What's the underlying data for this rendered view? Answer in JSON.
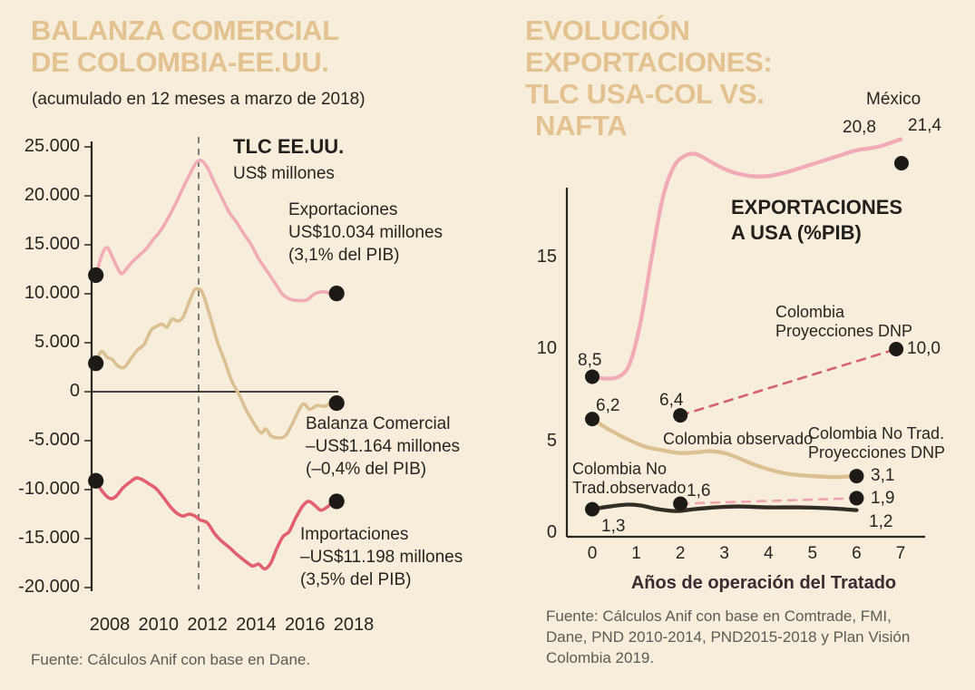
{
  "left_panel": {
    "title_lines": [
      "BALANZA COMERCIAL",
      "DE COLOMBIA-EE.UU."
    ],
    "subtitle": "(acumulado en 12 meses a marzo de 2018)",
    "tlc_label": "TLC EE.UU.",
    "units_label": "US$ millones",
    "annotations": {
      "exportaciones": [
        "Exportaciones",
        "US$10.034 millones",
        "(3,1% del PIB)"
      ],
      "balanza": [
        "Balanza Comercial",
        "–US$1.164 millones",
        "(–0,4% del PIB)"
      ],
      "importaciones": [
        "Importaciones",
        "–US$11.198 millones",
        "(3,5% del PIB)"
      ]
    },
    "source": "Fuente: Cálculos Anif con base en Dane."
  },
  "right_panel": {
    "title_lines": [
      "EVOLUCIÓN",
      "EXPORTACIONES:",
      "TLC USA-COL VS.",
      "NAFTA"
    ],
    "heading_lines": [
      "EXPORTACIONES",
      "A USA (%PIB)"
    ],
    "xaxis_title": "Años de operación del Tratado",
    "labels": {
      "mexico": "México",
      "mexico_v1": "20,8",
      "mexico_v2": "21,4",
      "mexico_start": "8,5",
      "col_proj": [
        "Colombia",
        "Proyecciones DNP"
      ],
      "col_proj_value": "10,0",
      "col_obs_start": "6,2",
      "col_proj_start": "6,4",
      "col_obs_label": "Colombia observado",
      "col_obs_end": "3,1",
      "notrad_proj": [
        "Colombia No Trad.",
        "Proyecciones DNP"
      ],
      "notrad_proj_start": "1,6",
      "notrad_proj_end": "1,9",
      "notrad_obs": [
        "Colombia No",
        "Trad.observado"
      ],
      "notrad_start": "1,3",
      "notrad_end": "1,2"
    },
    "source_lines": [
      "Fuente: Cálculos Anif con base en Comtrade, FMI,",
      "Dane, PND 2010-2014, PND2015-2018 y Plan Visión",
      "Colombia 2019."
    ]
  },
  "colors": {
    "background": "#f6eddb",
    "title_tan": "#e4c28f",
    "pink": "#f2aab6",
    "tan": "#dcc091",
    "red": "#e25f70",
    "dark_line": "#332d26",
    "projection_rose": "#d56070",
    "projection_light": "#efa3ad",
    "axis": "#2b2522",
    "text": "#2a2421",
    "muted": "#5d5b54",
    "marker": "#1e1a17"
  },
  "chart_data": [
    {
      "type": "line",
      "title": "Balanza comercial de Colombia-EE.UU. (acumulado en 12 meses a marzo de 2018)",
      "ylabel": "US$ millones",
      "ylim": [
        -20000,
        25000
      ],
      "tlc_event_label": "TLC EE.UU.",
      "x_axis": {
        "labels": [
          "2008",
          "2010",
          "2012",
          "2014",
          "2016",
          "2018"
        ],
        "values": [
          2008,
          2010,
          2012,
          2014,
          2016,
          2018
        ]
      },
      "y_axis": {
        "labels": [
          "25.000",
          "20.000",
          "15.000",
          "10.000",
          "5.000",
          "0",
          "-5.000",
          "-10.000",
          "-15.000",
          "-20.000"
        ],
        "values": [
          25000,
          20000,
          15000,
          10000,
          5000,
          0,
          -5000,
          -10000,
          -15000,
          -20000
        ]
      },
      "key_values": {
        "exportaciones": 10034,
        "balanza_comercial": -1164,
        "importaciones": -11198
      },
      "series": [
        {
          "name": "Exportaciones",
          "color": "#f2aab6",
          "style": "solid",
          "points": [
            [
              2007.43,
              11900
            ],
            [
              2007.7,
              14100
            ],
            [
              2007.9,
              14700
            ],
            [
              2008.1,
              13800
            ],
            [
              2008.45,
              12100
            ],
            [
              2008.7,
              12600
            ],
            [
              2008.9,
              13200
            ],
            [
              2009.2,
              13900
            ],
            [
              2009.5,
              14600
            ],
            [
              2009.8,
              15600
            ],
            [
              2010.1,
              16500
            ],
            [
              2010.45,
              18000
            ],
            [
              2010.7,
              19200
            ],
            [
              2011.0,
              20800
            ],
            [
              2011.3,
              22300
            ],
            [
              2011.55,
              23400
            ],
            [
              2011.75,
              23600
            ],
            [
              2012.0,
              22900
            ],
            [
              2012.3,
              21300
            ],
            [
              2012.6,
              19800
            ],
            [
              2012.9,
              18300
            ],
            [
              2013.2,
              17300
            ],
            [
              2013.5,
              16100
            ],
            [
              2013.8,
              15000
            ],
            [
              2014.1,
              13600
            ],
            [
              2014.45,
              12300
            ],
            [
              2014.8,
              11000
            ],
            [
              2015.1,
              9900
            ],
            [
              2015.45,
              9400
            ],
            [
              2015.8,
              9300
            ],
            [
              2016.1,
              9400
            ],
            [
              2016.4,
              10000
            ],
            [
              2016.7,
              10200
            ],
            [
              2017.0,
              10100
            ],
            [
              2017.3,
              10034
            ]
          ]
        },
        {
          "name": "Balanza Comercial",
          "color": "#dcc091",
          "style": "solid",
          "points": [
            [
              2007.43,
              2900
            ],
            [
              2007.65,
              4100
            ],
            [
              2007.9,
              3500
            ],
            [
              2008.1,
              3300
            ],
            [
              2008.35,
              2600
            ],
            [
              2008.6,
              2500
            ],
            [
              2008.9,
              3500
            ],
            [
              2009.15,
              4300
            ],
            [
              2009.4,
              4800
            ],
            [
              2009.7,
              6300
            ],
            [
              2009.95,
              6700
            ],
            [
              2010.15,
              6900
            ],
            [
              2010.35,
              6600
            ],
            [
              2010.55,
              7400
            ],
            [
              2010.8,
              7200
            ],
            [
              2011.0,
              7600
            ],
            [
              2011.2,
              8800
            ],
            [
              2011.45,
              10300
            ],
            [
              2011.6,
              10500
            ],
            [
              2011.8,
              10100
            ],
            [
              2012.1,
              7800
            ],
            [
              2012.4,
              5200
            ],
            [
              2012.7,
              3200
            ],
            [
              2013.0,
              1100
            ],
            [
              2013.3,
              -300
            ],
            [
              2013.6,
              -1900
            ],
            [
              2013.9,
              -3200
            ],
            [
              2014.2,
              -4200
            ],
            [
              2014.4,
              -3800
            ],
            [
              2014.6,
              -4500
            ],
            [
              2014.9,
              -4700
            ],
            [
              2015.2,
              -4500
            ],
            [
              2015.5,
              -3200
            ],
            [
              2015.9,
              -1300
            ],
            [
              2016.2,
              -1800
            ],
            [
              2016.5,
              -1400
            ],
            [
              2016.8,
              -1500
            ],
            [
              2017.05,
              -1200
            ],
            [
              2017.3,
              -1164
            ]
          ]
        },
        {
          "name": "Importaciones",
          "color": "#e25f70",
          "style": "solid",
          "points": [
            [
              2007.43,
              -9100
            ],
            [
              2007.7,
              -10200
            ],
            [
              2008.0,
              -10900
            ],
            [
              2008.25,
              -10700
            ],
            [
              2008.55,
              -9800
            ],
            [
              2008.9,
              -9100
            ],
            [
              2009.1,
              -8800
            ],
            [
              2009.35,
              -9000
            ],
            [
              2009.6,
              -9400
            ],
            [
              2009.9,
              -9900
            ],
            [
              2010.2,
              -10800
            ],
            [
              2010.5,
              -11800
            ],
            [
              2010.75,
              -12400
            ],
            [
              2011.0,
              -12700
            ],
            [
              2011.25,
              -12500
            ],
            [
              2011.5,
              -12700
            ],
            [
              2011.7,
              -13100
            ],
            [
              2012.0,
              -13400
            ],
            [
              2012.3,
              -14500
            ],
            [
              2012.6,
              -15300
            ],
            [
              2012.9,
              -15900
            ],
            [
              2013.2,
              -16600
            ],
            [
              2013.5,
              -17200
            ],
            [
              2013.85,
              -17800
            ],
            [
              2014.1,
              -17600
            ],
            [
              2014.35,
              -18100
            ],
            [
              2014.6,
              -17500
            ],
            [
              2014.85,
              -16000
            ],
            [
              2015.1,
              -14800
            ],
            [
              2015.35,
              -14300
            ],
            [
              2015.6,
              -13000
            ],
            [
              2015.9,
              -11700
            ],
            [
              2016.15,
              -11200
            ],
            [
              2016.4,
              -11600
            ],
            [
              2016.65,
              -12100
            ],
            [
              2016.9,
              -11800
            ],
            [
              2017.1,
              -11400
            ],
            [
              2017.3,
              -11198
            ]
          ]
        }
      ],
      "markers": [
        [
          2007.43,
          11900
        ],
        [
          2017.3,
          10034
        ],
        [
          2007.43,
          2900
        ],
        [
          2017.3,
          -1164
        ],
        [
          2007.43,
          -9100
        ],
        [
          2017.3,
          -11198
        ]
      ]
    },
    {
      "type": "line",
      "title": "Exportaciones a USA (%PIB): TLC USA-COL vs. NAFTA",
      "xlabel": "Años de operación del Tratado",
      "ylim": [
        0,
        22
      ],
      "x_axis": {
        "labels": [
          "0",
          "1",
          "2",
          "3",
          "4",
          "5",
          "6",
          "7"
        ],
        "values": [
          0,
          1,
          2,
          3,
          4,
          5,
          6,
          7
        ]
      },
      "y_axis": {
        "labels": [
          "15",
          "10",
          "5",
          "0"
        ],
        "values": [
          15,
          10,
          5,
          0
        ]
      },
      "series": [
        {
          "name": "México",
          "color": "#f2aab6",
          "style": "solid",
          "points": [
            [
              0,
              8.5
            ],
            [
              0.3,
              8.4
            ],
            [
              0.6,
              8.5
            ],
            [
              0.85,
              9.2
            ],
            [
              1.1,
              11.5
            ],
            [
              1.35,
              15.0
            ],
            [
              1.6,
              18.2
            ],
            [
              1.85,
              19.9
            ],
            [
              2.1,
              20.5
            ],
            [
              2.35,
              20.6
            ],
            [
              2.6,
              20.3
            ],
            [
              2.9,
              19.9
            ],
            [
              3.2,
              19.6
            ],
            [
              3.6,
              19.4
            ],
            [
              4.0,
              19.4
            ],
            [
              4.4,
              19.6
            ],
            [
              4.8,
              19.9
            ],
            [
              5.2,
              20.2
            ],
            [
              5.6,
              20.5
            ],
            [
              6.0,
              20.8
            ],
            [
              6.5,
              21.0
            ],
            [
              7.0,
              21.4
            ]
          ]
        },
        {
          "name": "Colombia observado",
          "color": "#dcc091",
          "style": "solid",
          "points": [
            [
              0,
              6.2
            ],
            [
              0.4,
              5.6
            ],
            [
              0.8,
              5.1
            ],
            [
              1.2,
              4.7
            ],
            [
              1.6,
              4.5
            ],
            [
              2.0,
              4.35
            ],
            [
              2.4,
              4.4
            ],
            [
              2.7,
              4.45
            ],
            [
              3.0,
              4.35
            ],
            [
              3.3,
              4.1
            ],
            [
              3.7,
              3.7
            ],
            [
              4.1,
              3.4
            ],
            [
              4.5,
              3.2
            ],
            [
              5.0,
              3.1
            ],
            [
              5.5,
              3.05
            ],
            [
              6.0,
              3.1
            ]
          ]
        },
        {
          "name": "Colombia No Trad. observado",
          "color": "#332d26",
          "style": "solid",
          "points": [
            [
              0,
              1.3
            ],
            [
              0.4,
              1.45
            ],
            [
              0.8,
              1.55
            ],
            [
              1.1,
              1.5
            ],
            [
              1.5,
              1.3
            ],
            [
              1.9,
              1.2
            ],
            [
              2.3,
              1.3
            ],
            [
              2.8,
              1.4
            ],
            [
              3.3,
              1.45
            ],
            [
              4.0,
              1.4
            ],
            [
              4.7,
              1.4
            ],
            [
              5.4,
              1.35
            ],
            [
              6.0,
              1.25
            ]
          ]
        },
        {
          "name": "Colombia Proyecciones DNP",
          "color": "#d56070",
          "style": "dashed",
          "points": [
            [
              2,
              6.4
            ],
            [
              6.9,
              10.0
            ]
          ]
        },
        {
          "name": "Colombia No Trad. Proyecciones DNP",
          "color": "#efa3ad",
          "style": "dashed",
          "points": [
            [
              2,
              1.6
            ],
            [
              6,
              1.9
            ]
          ]
        }
      ],
      "markers": [
        [
          0,
          8.5
        ],
        [
          0,
          6.2
        ],
        [
          0,
          1.3
        ],
        [
          2,
          6.4
        ],
        [
          2,
          1.6
        ],
        [
          6,
          3.1
        ],
        [
          6,
          1.9
        ],
        [
          6.9,
          10.0
        ],
        [
          7.02,
          20.1
        ]
      ]
    }
  ]
}
